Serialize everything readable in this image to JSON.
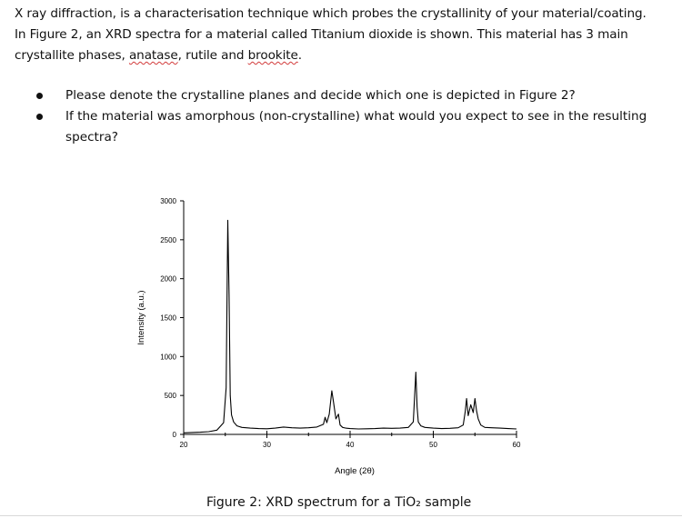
{
  "intro": {
    "line1": "X ray diffraction, is a characterisation technique which probes the crystallinity of your material/coating.",
    "line2": "In Figure 2, an XRD spectra for a material called Titanium dioxide is shown. This material has 3 main",
    "line3_prefix": "crystallite phases, ",
    "phase_anatase": "anatase",
    "line3_mid": ", rutile and ",
    "phase_brookite": "brookite",
    "line3_suffix": "."
  },
  "questions": [
    {
      "line1": "Please denote the crystalline planes and decide which one is depicted in Figure 2?",
      "line2": ""
    },
    {
      "line1": "If the material was amorphous (non-crystalline) what would you expect to see in the resulting",
      "line2": "spectra?"
    }
  ],
  "caption": "Figure 2: XRD spectrum for a TiO₂ sample",
  "chart_data": {
    "type": "line",
    "xlabel": "Angle (2θ)",
    "ylabel": "Intensity (a.u.)",
    "xlim": [
      20,
      60
    ],
    "ylim": [
      0,
      3000
    ],
    "x_ticks": [
      "20",
      "30",
      "40",
      "50",
      "60"
    ],
    "y_ticks": [
      "0",
      "500",
      "1000",
      "1500",
      "2000",
      "2500",
      "3000"
    ],
    "line_color": "#000000",
    "grid": false,
    "legend": "none",
    "series": [
      {
        "x": [
          20,
          21,
          22,
          23,
          24,
          24.8,
          25.1,
          25.3,
          25.45,
          25.6,
          25.75,
          26.0,
          26.4,
          27,
          28,
          29,
          30,
          31,
          32,
          33,
          34,
          35,
          36,
          36.8,
          37.0,
          37.2,
          37.5,
          37.8,
          38.0,
          38.3,
          38.6,
          38.8,
          39.1,
          39.5,
          40,
          41,
          42,
          43,
          44,
          45,
          46,
          47,
          47.6,
          47.9,
          48.05,
          48.2,
          48.5,
          49,
          50,
          51,
          52,
          53,
          53.6,
          53.85,
          54.0,
          54.2,
          54.5,
          54.8,
          55.0,
          55.2,
          55.4,
          55.7,
          56.2,
          57,
          58,
          59,
          60
        ],
        "y": [
          20,
          25,
          28,
          35,
          55,
          150,
          600,
          2750,
          1800,
          500,
          250,
          160,
          110,
          90,
          80,
          75,
          72,
          80,
          95,
          85,
          80,
          85,
          95,
          130,
          220,
          150,
          260,
          560,
          420,
          200,
          260,
          120,
          90,
          80,
          75,
          70,
          72,
          75,
          80,
          78,
          80,
          90,
          160,
          800,
          350,
          160,
          110,
          90,
          80,
          75,
          78,
          85,
          120,
          300,
          460,
          240,
          380,
          280,
          460,
          300,
          200,
          120,
          90,
          85,
          80,
          75,
          70
        ]
      }
    ]
  }
}
